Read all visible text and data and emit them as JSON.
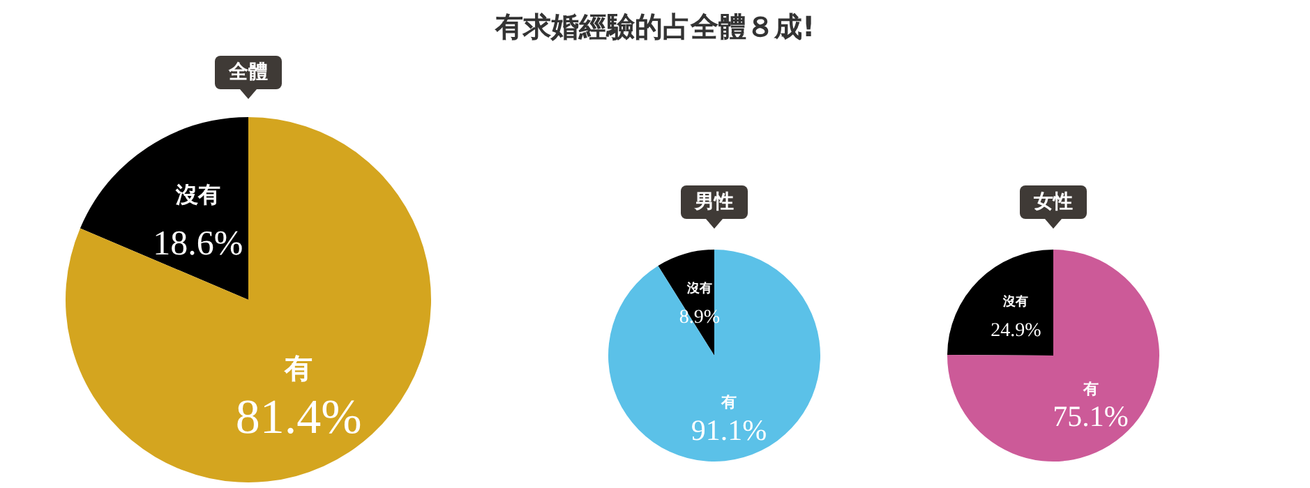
{
  "chart_data": [
    {
      "type": "pie",
      "title": "全體",
      "categories": [
        "沒有",
        "有"
      ],
      "values": [
        18.6,
        81.4
      ],
      "colors": [
        "#000000",
        "#d4a51f"
      ],
      "value_labels": [
        "18.6%",
        "81.4%"
      ],
      "legend": false,
      "annotations": [
        "有求婚經驗的占全體８成!"
      ]
    },
    {
      "type": "pie",
      "title": "男性",
      "categories": [
        "沒有",
        "有"
      ],
      "values": [
        8.9,
        91.1
      ],
      "colors": [
        "#000000",
        "#5bc1e8"
      ],
      "value_labels": [
        "8.9%",
        "91.1%"
      ],
      "legend": false
    },
    {
      "type": "pie",
      "title": "女性",
      "categories": [
        "沒有",
        "有"
      ],
      "values": [
        24.9,
        75.1
      ],
      "colors": [
        "#000000",
        "#cc5a98"
      ],
      "value_labels": [
        "24.9%",
        "75.1%"
      ],
      "legend": false
    }
  ]
}
